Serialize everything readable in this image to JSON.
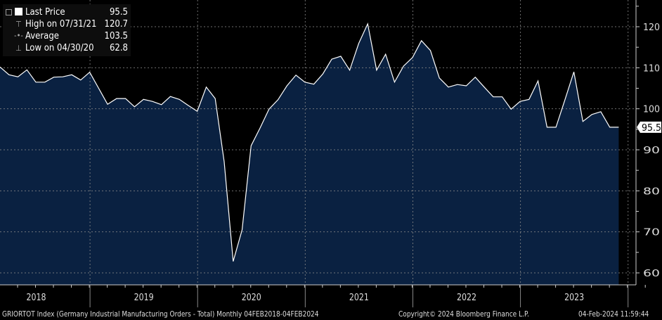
{
  "chart_data": {
    "type": "area",
    "x": [
      "2018-02",
      "2018-03",
      "2018-04",
      "2018-05",
      "2018-06",
      "2018-07",
      "2018-08",
      "2018-09",
      "2018-10",
      "2018-11",
      "2018-12",
      "2019-01",
      "2019-02",
      "2019-03",
      "2019-04",
      "2019-05",
      "2019-06",
      "2019-07",
      "2019-08",
      "2019-09",
      "2019-10",
      "2019-11",
      "2019-12",
      "2020-01",
      "2020-02",
      "2020-03",
      "2020-04",
      "2020-05",
      "2020-06",
      "2020-07",
      "2020-08",
      "2020-09",
      "2020-10",
      "2020-11",
      "2020-12",
      "2021-01",
      "2021-02",
      "2021-03",
      "2021-04",
      "2021-05",
      "2021-06",
      "2021-07",
      "2021-08",
      "2021-09",
      "2021-10",
      "2021-11",
      "2021-12",
      "2022-01",
      "2022-02",
      "2022-03",
      "2022-04",
      "2022-05",
      "2022-06",
      "2022-07",
      "2022-08",
      "2022-09",
      "2022-10",
      "2022-11",
      "2022-12",
      "2023-01",
      "2023-02",
      "2023-03",
      "2023-04",
      "2023-05",
      "2023-06",
      "2023-07",
      "2023-08",
      "2023-09",
      "2023-10",
      "2023-11"
    ],
    "values": [
      110.2,
      108.3,
      107.8,
      109.5,
      106.5,
      106.5,
      107.7,
      107.8,
      108.3,
      107.0,
      108.9,
      105.0,
      101.1,
      102.5,
      102.5,
      100.5,
      102.3,
      101.8,
      101.0,
      103.0,
      102.3,
      100.8,
      99.4,
      105.3,
      102.5,
      87.1,
      62.8,
      70.5,
      91.0,
      95.3,
      99.9,
      102.2,
      105.6,
      108.2,
      106.5,
      106.0,
      108.5,
      112.1,
      112.8,
      109.4,
      115.9,
      120.7,
      109.4,
      113.3,
      106.5,
      110.4,
      112.5,
      116.6,
      114.2,
      107.5,
      105.3,
      105.9,
      105.6,
      107.7,
      105.3,
      102.9,
      102.9,
      99.9,
      101.8,
      102.3,
      106.8,
      95.5,
      95.5,
      102.2,
      109.0,
      96.9,
      98.6,
      99.3,
      95.5,
      95.5
    ],
    "ylim": [
      57,
      126
    ],
    "yticks": [
      60,
      70,
      80,
      90,
      100,
      110,
      120
    ],
    "year_labels": [
      "2018",
      "2019",
      "2020",
      "2021",
      "2022",
      "2023"
    ],
    "y_axis_side": "right",
    "grid": true,
    "last_value_label": "95.5",
    "legend_placement": "top-left",
    "legend": [
      {
        "label": "Last Price",
        "value": "95.5"
      },
      {
        "label": "High on 07/31/21",
        "value": "120.7"
      },
      {
        "label": "Average",
        "value": "103.5"
      },
      {
        "label": "Low on 04/30/20",
        "value": "62.8"
      }
    ],
    "colors": {
      "background": "#000000",
      "area": "#0a2141",
      "line": "#ffffff",
      "grid": "#8a8a8a"
    }
  },
  "footer": {
    "description": "GRIORTOT Index (Germany Industrial Manufacturing Orders - Total)  Monthly 04FEB2018-04FEB2024",
    "copyright": "Copyright© 2024 Bloomberg Finance L.P.",
    "timestamp": "04-Feb-2024 11:59:44"
  }
}
